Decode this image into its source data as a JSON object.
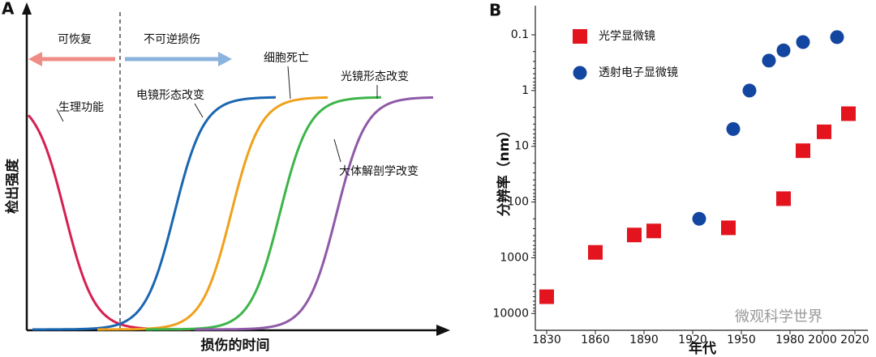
{
  "panel_a": {
    "panel_label": "A",
    "y_label": "检出强度",
    "x_label": "损伤的时间",
    "recoverable": "可恢复",
    "irreversible": "不可逆损伤",
    "curves": [
      {
        "name": "生理功能",
        "color": "#d6204f"
      },
      {
        "name": "电镜形态改变",
        "color": "#1a66b0"
      },
      {
        "name": "细胞死亡",
        "color": "#f0a11c"
      },
      {
        "name": "光镜形态改变",
        "color": "#3cb54a"
      },
      {
        "name": "大体解剖学改变",
        "color": "#8e5aa8"
      }
    ]
  },
  "chart_data": {
    "type": "scatter",
    "panel_label": "B",
    "x_label": "年代",
    "y_label": "分辨率（nm）",
    "watermark": "微观科学世界",
    "log_y": true,
    "xlim": [
      1823,
      2028
    ],
    "ylim": [
      20000,
      0.03
    ],
    "xticks": [
      1830,
      1860,
      1890,
      1920,
      1950,
      1980,
      2000,
      2020
    ],
    "yticks": [
      0.1,
      1,
      10,
      100,
      1000,
      10000
    ],
    "series": [
      {
        "name": "光学显微镜",
        "color": "#e3141e",
        "marker": "square",
        "x": [
          1830,
          1860,
          1884,
          1896,
          1942,
          1976,
          1988,
          2001,
          2016
        ],
        "values": [
          5000,
          800,
          390,
          330,
          290,
          87,
          12,
          5.5,
          2.6
        ]
      },
      {
        "name": "透射电子显微镜",
        "color": "#1346a0",
        "marker": "circle",
        "x": [
          1924,
          1945,
          1955,
          1967,
          1976,
          1988,
          2009
        ],
        "values": [
          200,
          4.9,
          1,
          0.29,
          0.19,
          0.135,
          0.11
        ]
      }
    ]
  }
}
